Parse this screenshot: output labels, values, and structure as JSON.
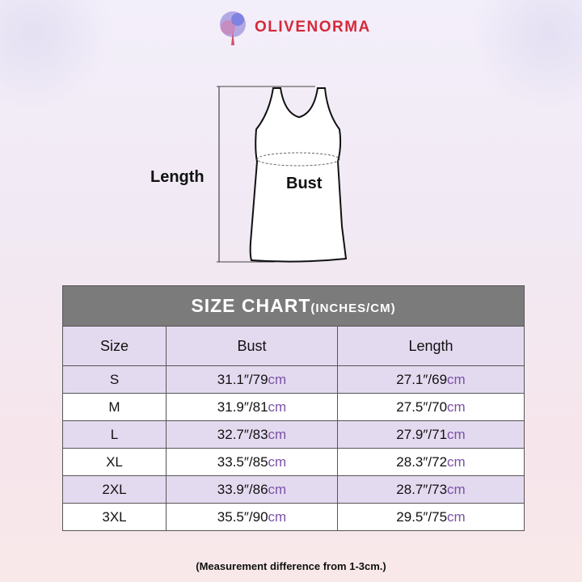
{
  "brand": {
    "name": "OLIVENORMA",
    "colors": {
      "brand": "#d42a3a",
      "accent": "#7a52a6",
      "header": "#7b7b7b",
      "row_alt": "#e4daf0"
    }
  },
  "diagram": {
    "length_label": "Length",
    "bust_label": "Bust"
  },
  "table": {
    "title": "SIZE CHART",
    "title_units": "(INCHES/CM)",
    "columns": [
      "Size",
      "Bust",
      "Length"
    ],
    "rows": [
      {
        "size": "S",
        "bust": "31.1″/79",
        "bust_unit": "cm",
        "length": "27.1″/69",
        "length_unit": "cm"
      },
      {
        "size": "M",
        "bust": "31.9″/81",
        "bust_unit": "cm",
        "length": "27.5″/70",
        "length_unit": "cm"
      },
      {
        "size": "L",
        "bust": "32.7″/83",
        "bust_unit": "cm",
        "length": "27.9″/71",
        "length_unit": "cm"
      },
      {
        "size": "XL",
        "bust": "33.5″/85",
        "bust_unit": "cm",
        "length": "28.3″/72",
        "length_unit": "cm"
      },
      {
        "size": "2XL",
        "bust": "33.9″/86",
        "bust_unit": "cm",
        "length": "28.7″/73",
        "length_unit": "cm"
      },
      {
        "size": "3XL",
        "bust": "35.5″/90",
        "bust_unit": "cm",
        "length": "29.5″/75",
        "length_unit": "cm"
      }
    ]
  },
  "note": "(Measurement difference from 1-3cm.)"
}
